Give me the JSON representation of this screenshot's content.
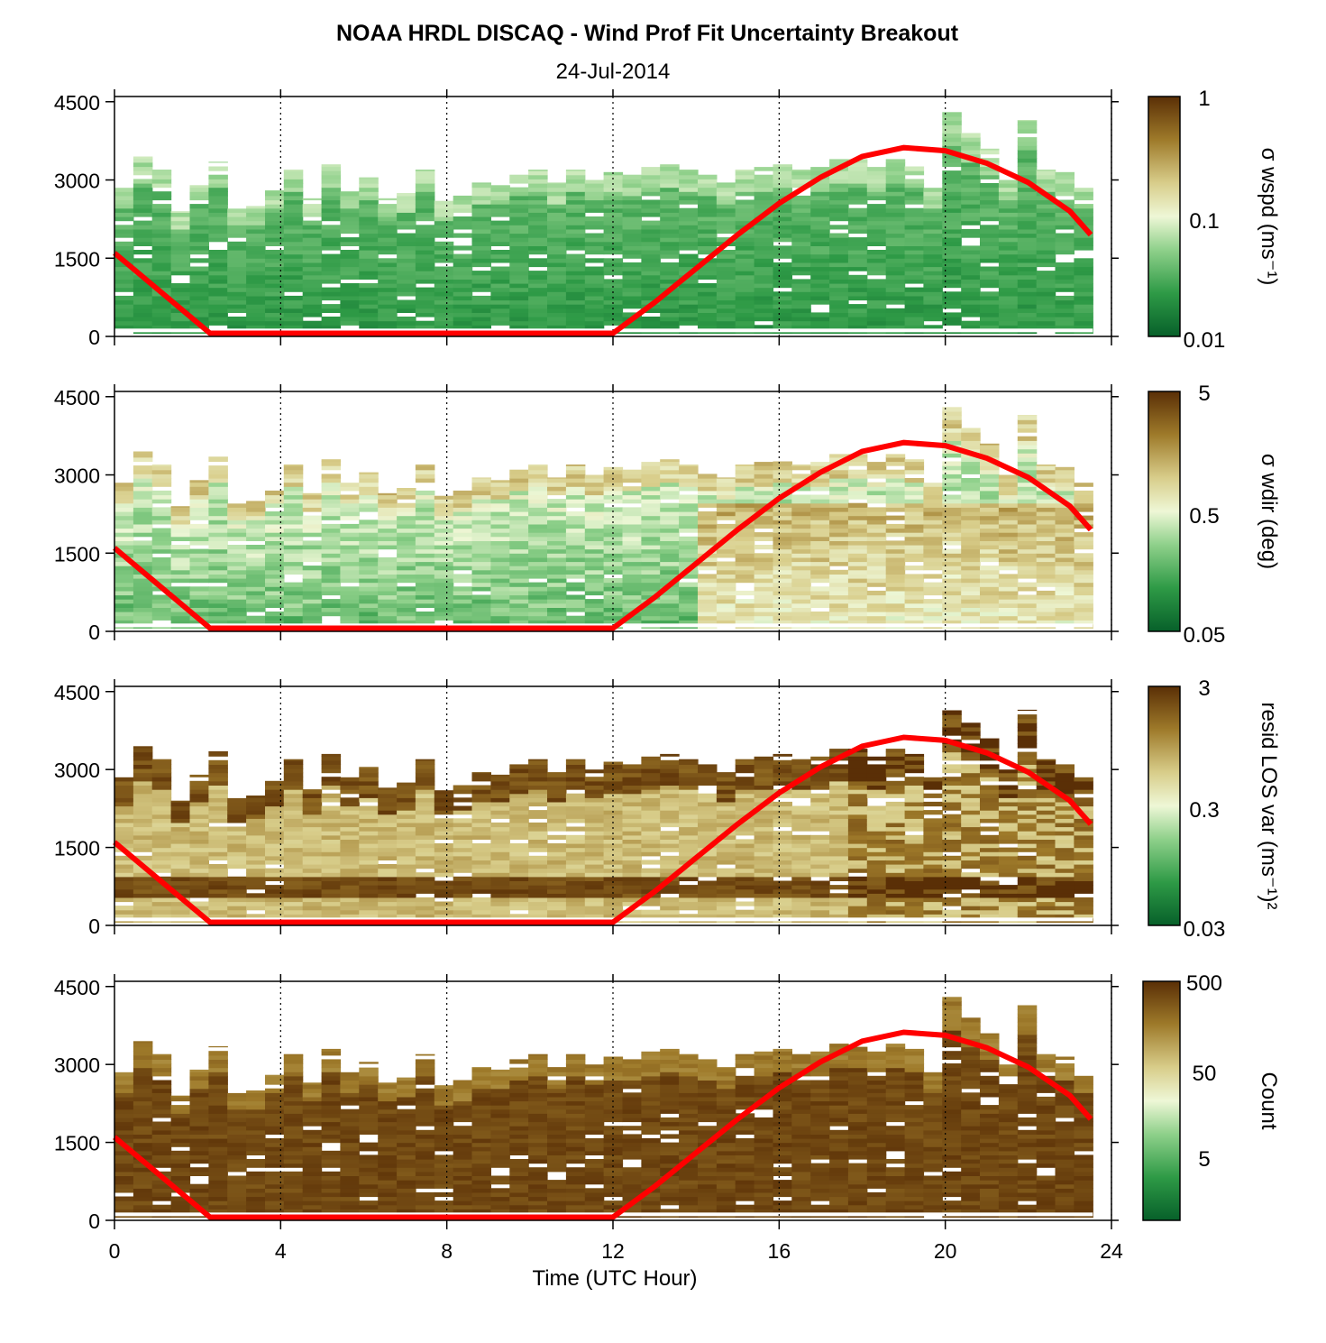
{
  "title": "NOAA HRDL DISCAQ - Wind Prof Fit Uncertainty Breakout",
  "subtitle": "24-Jul-2014",
  "colors": {
    "brown_dark": "#5a2f06",
    "brown_mid": "#a07a2a",
    "tan": "#d8cd8a",
    "pale": "#f3f6d9",
    "green_light": "#a9dea1",
    "green_mid": "#3aa74a",
    "green_dark": "#0a6b2c",
    "sun_line": "#ff0000",
    "grid": "#000000"
  },
  "chart_data": {
    "type": "heatmap",
    "x_label": "Time (UTC Hour)",
    "x_ticks": [
      "0",
      "4",
      "8",
      "12",
      "16",
      "20",
      "24"
    ],
    "x_range": [
      0,
      24
    ],
    "y_range": [
      0,
      4600
    ],
    "y_ticks": [
      "0",
      "1500",
      "3000",
      "4500"
    ],
    "grid": "vertical dotted at 4-hour intervals",
    "boundary_layer_line": {
      "hours": [
        0,
        2.3,
        12.0,
        13,
        14,
        15,
        16,
        17,
        18,
        19,
        20,
        21,
        22,
        23,
        23.5
      ],
      "heights": [
        1600,
        60,
        60,
        650,
        1300,
        1950,
        2550,
        3050,
        3450,
        3620,
        3560,
        3320,
        2950,
        2400,
        1950
      ]
    },
    "panels": [
      {
        "label": "σ wspd (ms⁻¹)",
        "colorbar_ticks": [
          "1",
          "0.1",
          "0.01"
        ],
        "profile_tops": [
          2850,
          3450,
          3200,
          2400,
          2900,
          3350,
          2450,
          2500,
          2800,
          3200,
          2650,
          3300,
          2850,
          3050,
          2650,
          2750,
          3200,
          2600,
          2700,
          2950,
          2900,
          3100,
          3200,
          2950,
          3200,
          3000,
          3150,
          3100,
          3250,
          3300,
          3200,
          3100,
          2950,
          3200,
          3250,
          3300,
          3200,
          3250,
          3400,
          3400,
          3250,
          3400,
          3300,
          2850,
          4300,
          3900,
          3600,
          3000,
          4150,
          3200,
          3150,
          2850
        ]
      },
      {
        "label": "σ wdir (deg)",
        "colorbar_ticks": [
          "5",
          "0.5",
          "0.05"
        ]
      },
      {
        "label": "resid LOS var (ms⁻¹)²",
        "colorbar_ticks": [
          "3",
          "0.3",
          "0.03"
        ]
      },
      {
        "label": "Count",
        "colorbar_ticks": [
          "500",
          "50",
          "5"
        ]
      }
    ]
  }
}
